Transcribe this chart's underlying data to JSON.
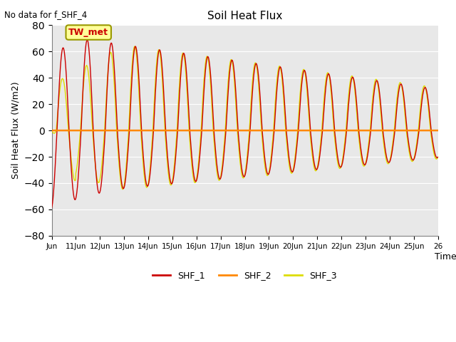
{
  "title": "Soil Heat Flux",
  "top_left_text": "No data for f_SHF_4",
  "ylabel": "Soil Heat Flux (W/m2)",
  "xlabel": "Time",
  "ylim": [
    -80,
    80
  ],
  "yticks": [
    -80,
    -60,
    -40,
    -20,
    0,
    20,
    40,
    60,
    80
  ],
  "xtick_labels": [
    "Jun",
    "11Jun",
    "12Jun",
    "13Jun",
    "14Jun",
    "15Jun",
    "16Jun",
    "17Jun",
    "18Jun",
    "19Jun",
    "20Jun",
    "21Jun",
    "22Jun",
    "23Jun",
    "24Jun",
    "25Jun",
    "26"
  ],
  "color_SHF1": "#cc0000",
  "color_SHF2": "#ff8800",
  "color_SHF3": "#dddd00",
  "bg_color": "#e8e8e8",
  "tw_met_label": "TW_met",
  "tw_met_bg": "#ffff99",
  "tw_met_border": "#999900",
  "legend_labels": [
    "SHF_1",
    "SHF_2",
    "SHF_3"
  ],
  "figsize": [
    6.4,
    4.8
  ],
  "dpi": 100
}
